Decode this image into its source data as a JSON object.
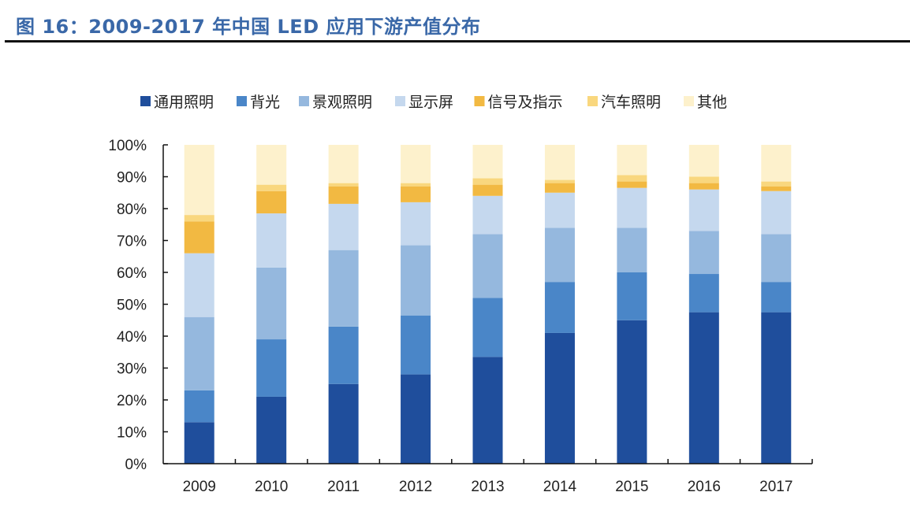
{
  "title": "图 16：2009-2017 年中国 LED 应用下游产值分布",
  "chart_data": {
    "type": "bar",
    "stacked": true,
    "percent_stacked": true,
    "title": "图 16：2009-2017 年中国 LED 应用下游产值分布",
    "xlabel": "",
    "ylabel": "",
    "ylim": [
      0,
      100
    ],
    "yticks": [
      "0%",
      "10%",
      "20%",
      "30%",
      "40%",
      "50%",
      "60%",
      "70%",
      "80%",
      "90%",
      "100%"
    ],
    "categories": [
      "2009",
      "2010",
      "2011",
      "2012",
      "2013",
      "2014",
      "2015",
      "2016",
      "2017"
    ],
    "legend_position": "top",
    "grid": false,
    "series": [
      {
        "name": "通用照明",
        "color": "#1F4E9C",
        "values": [
          13,
          21,
          25,
          28,
          33.5,
          41,
          45,
          47.5,
          47.5
        ]
      },
      {
        "name": "背光",
        "color": "#4A86C8",
        "values": [
          10,
          18,
          18,
          18.5,
          18.5,
          16,
          15,
          12,
          9.5
        ]
      },
      {
        "name": "景观照明",
        "color": "#95B8DE",
        "values": [
          23,
          22.5,
          24,
          22,
          20,
          17,
          14,
          13.5,
          15
        ]
      },
      {
        "name": "显示屏",
        "color": "#C5D8EE",
        "values": [
          20,
          17,
          14.5,
          13.5,
          12,
          11,
          12.5,
          13,
          13.5
        ]
      },
      {
        "name": "信号及指示",
        "color": "#F2B942",
        "values": [
          10,
          7,
          5.5,
          5,
          3.5,
          3,
          2,
          2,
          1.5
        ]
      },
      {
        "name": "汽车照明",
        "color": "#F9D77E",
        "values": [
          2,
          2,
          1,
          1,
          2,
          1,
          2,
          2,
          1.5
        ]
      },
      {
        "name": "其他",
        "color": "#FDF1CC",
        "values": [
          22,
          12.5,
          12,
          12,
          10.5,
          11,
          9.5,
          10,
          11.5
        ]
      }
    ]
  }
}
